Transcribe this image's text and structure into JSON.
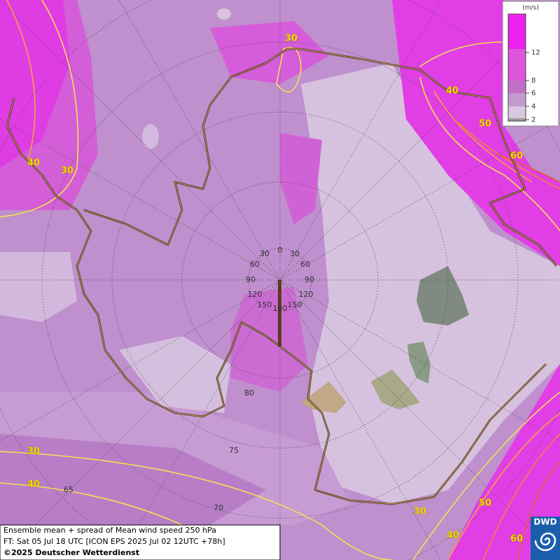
{
  "colorbar": {
    "unit": "(m/s)",
    "ticks": [
      12,
      8,
      6,
      4,
      2
    ]
  },
  "contour_labels": [
    30,
    30,
    40,
    40,
    50,
    60,
    30,
    40,
    30,
    40,
    50,
    60
  ],
  "graticule_labels": [
    0,
    30,
    30,
    60,
    60,
    90,
    90,
    120,
    120,
    150,
    150,
    180,
    80,
    75,
    70,
    65
  ],
  "footer": {
    "title": "Ensemble mean + spread of Mean wind speed 250 hPa",
    "forecast_time": "FT: Sat 05 Jul 18 UTC [ICON EPS 2025 Jul 02 12UTC +78h]",
    "copyright": "©2025 Deutscher Wetterdienst"
  },
  "logo": "DWD"
}
